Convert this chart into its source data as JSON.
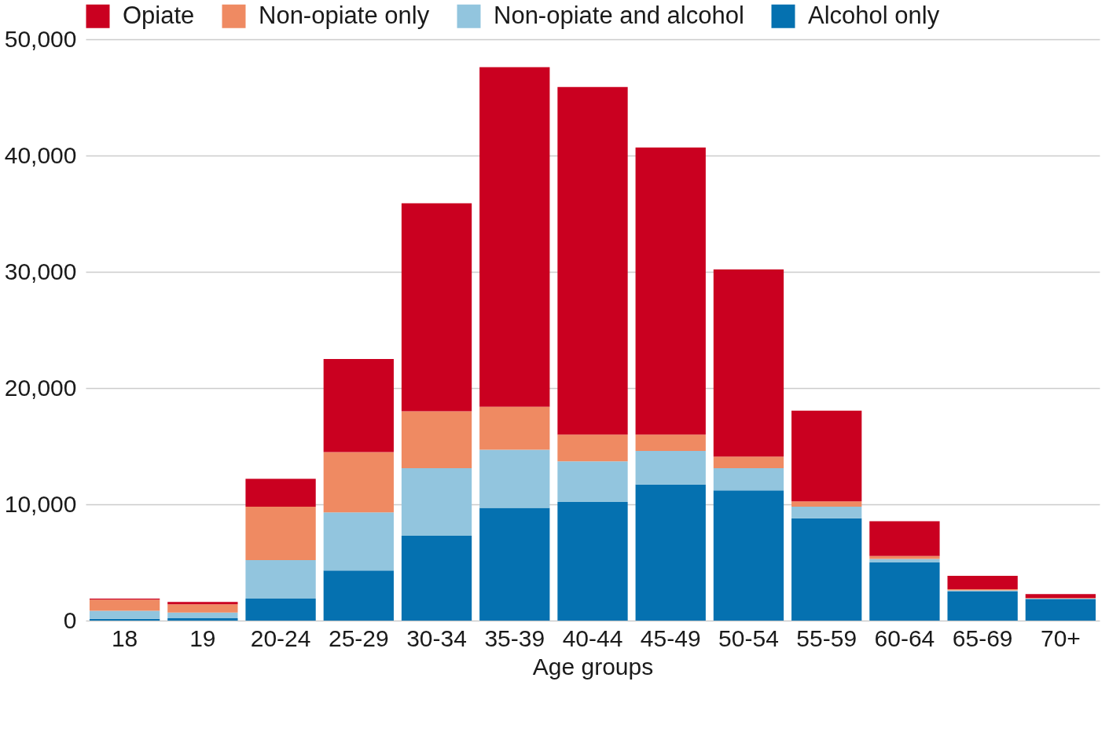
{
  "chart_data": {
    "type": "bar",
    "stacked": true,
    "xlabel": "Age groups",
    "categories": [
      "18",
      "19",
      "20-24",
      "25-29",
      "30-34",
      "35-39",
      "40-44",
      "45-49",
      "50-54",
      "55-59",
      "60-64",
      "65-69",
      "70+"
    ],
    "series": [
      {
        "name": "Alcohol only",
        "color": "#0571b0",
        "values": [
          150,
          200,
          1900,
          4300,
          7300,
          9700,
          10200,
          11700,
          11200,
          8800,
          5000,
          2500,
          1850
        ]
      },
      {
        "name": "Non-opiate and alcohol",
        "color": "#92c5de",
        "values": [
          700,
          500,
          3300,
          5000,
          5800,
          5000,
          3500,
          2900,
          1900,
          1000,
          300,
          100,
          50
        ]
      },
      {
        "name": "Non-opiate only",
        "color": "#ef8a62",
        "values": [
          950,
          700,
          4600,
          5200,
          4900,
          3700,
          2300,
          1400,
          1000,
          450,
          250,
          100,
          50
        ]
      },
      {
        "name": "Opiate",
        "color": "#ca0020",
        "values": [
          100,
          200,
          2400,
          8000,
          17900,
          29200,
          29900,
          24700,
          16100,
          7800,
          3000,
          1150,
          330
        ]
      }
    ],
    "ylim": [
      0,
      50000
    ],
    "yticks": [
      0,
      {
        "value": 10000,
        "label": "10,000"
      },
      {
        "value": 20000,
        "label": "20,000"
      },
      {
        "value": 30000,
        "label": "30,000"
      },
      {
        "value": 40000,
        "label": "40,000"
      },
      {
        "value": 50000,
        "label": "50,000"
      }
    ],
    "grid": "y",
    "legend": "top"
  }
}
